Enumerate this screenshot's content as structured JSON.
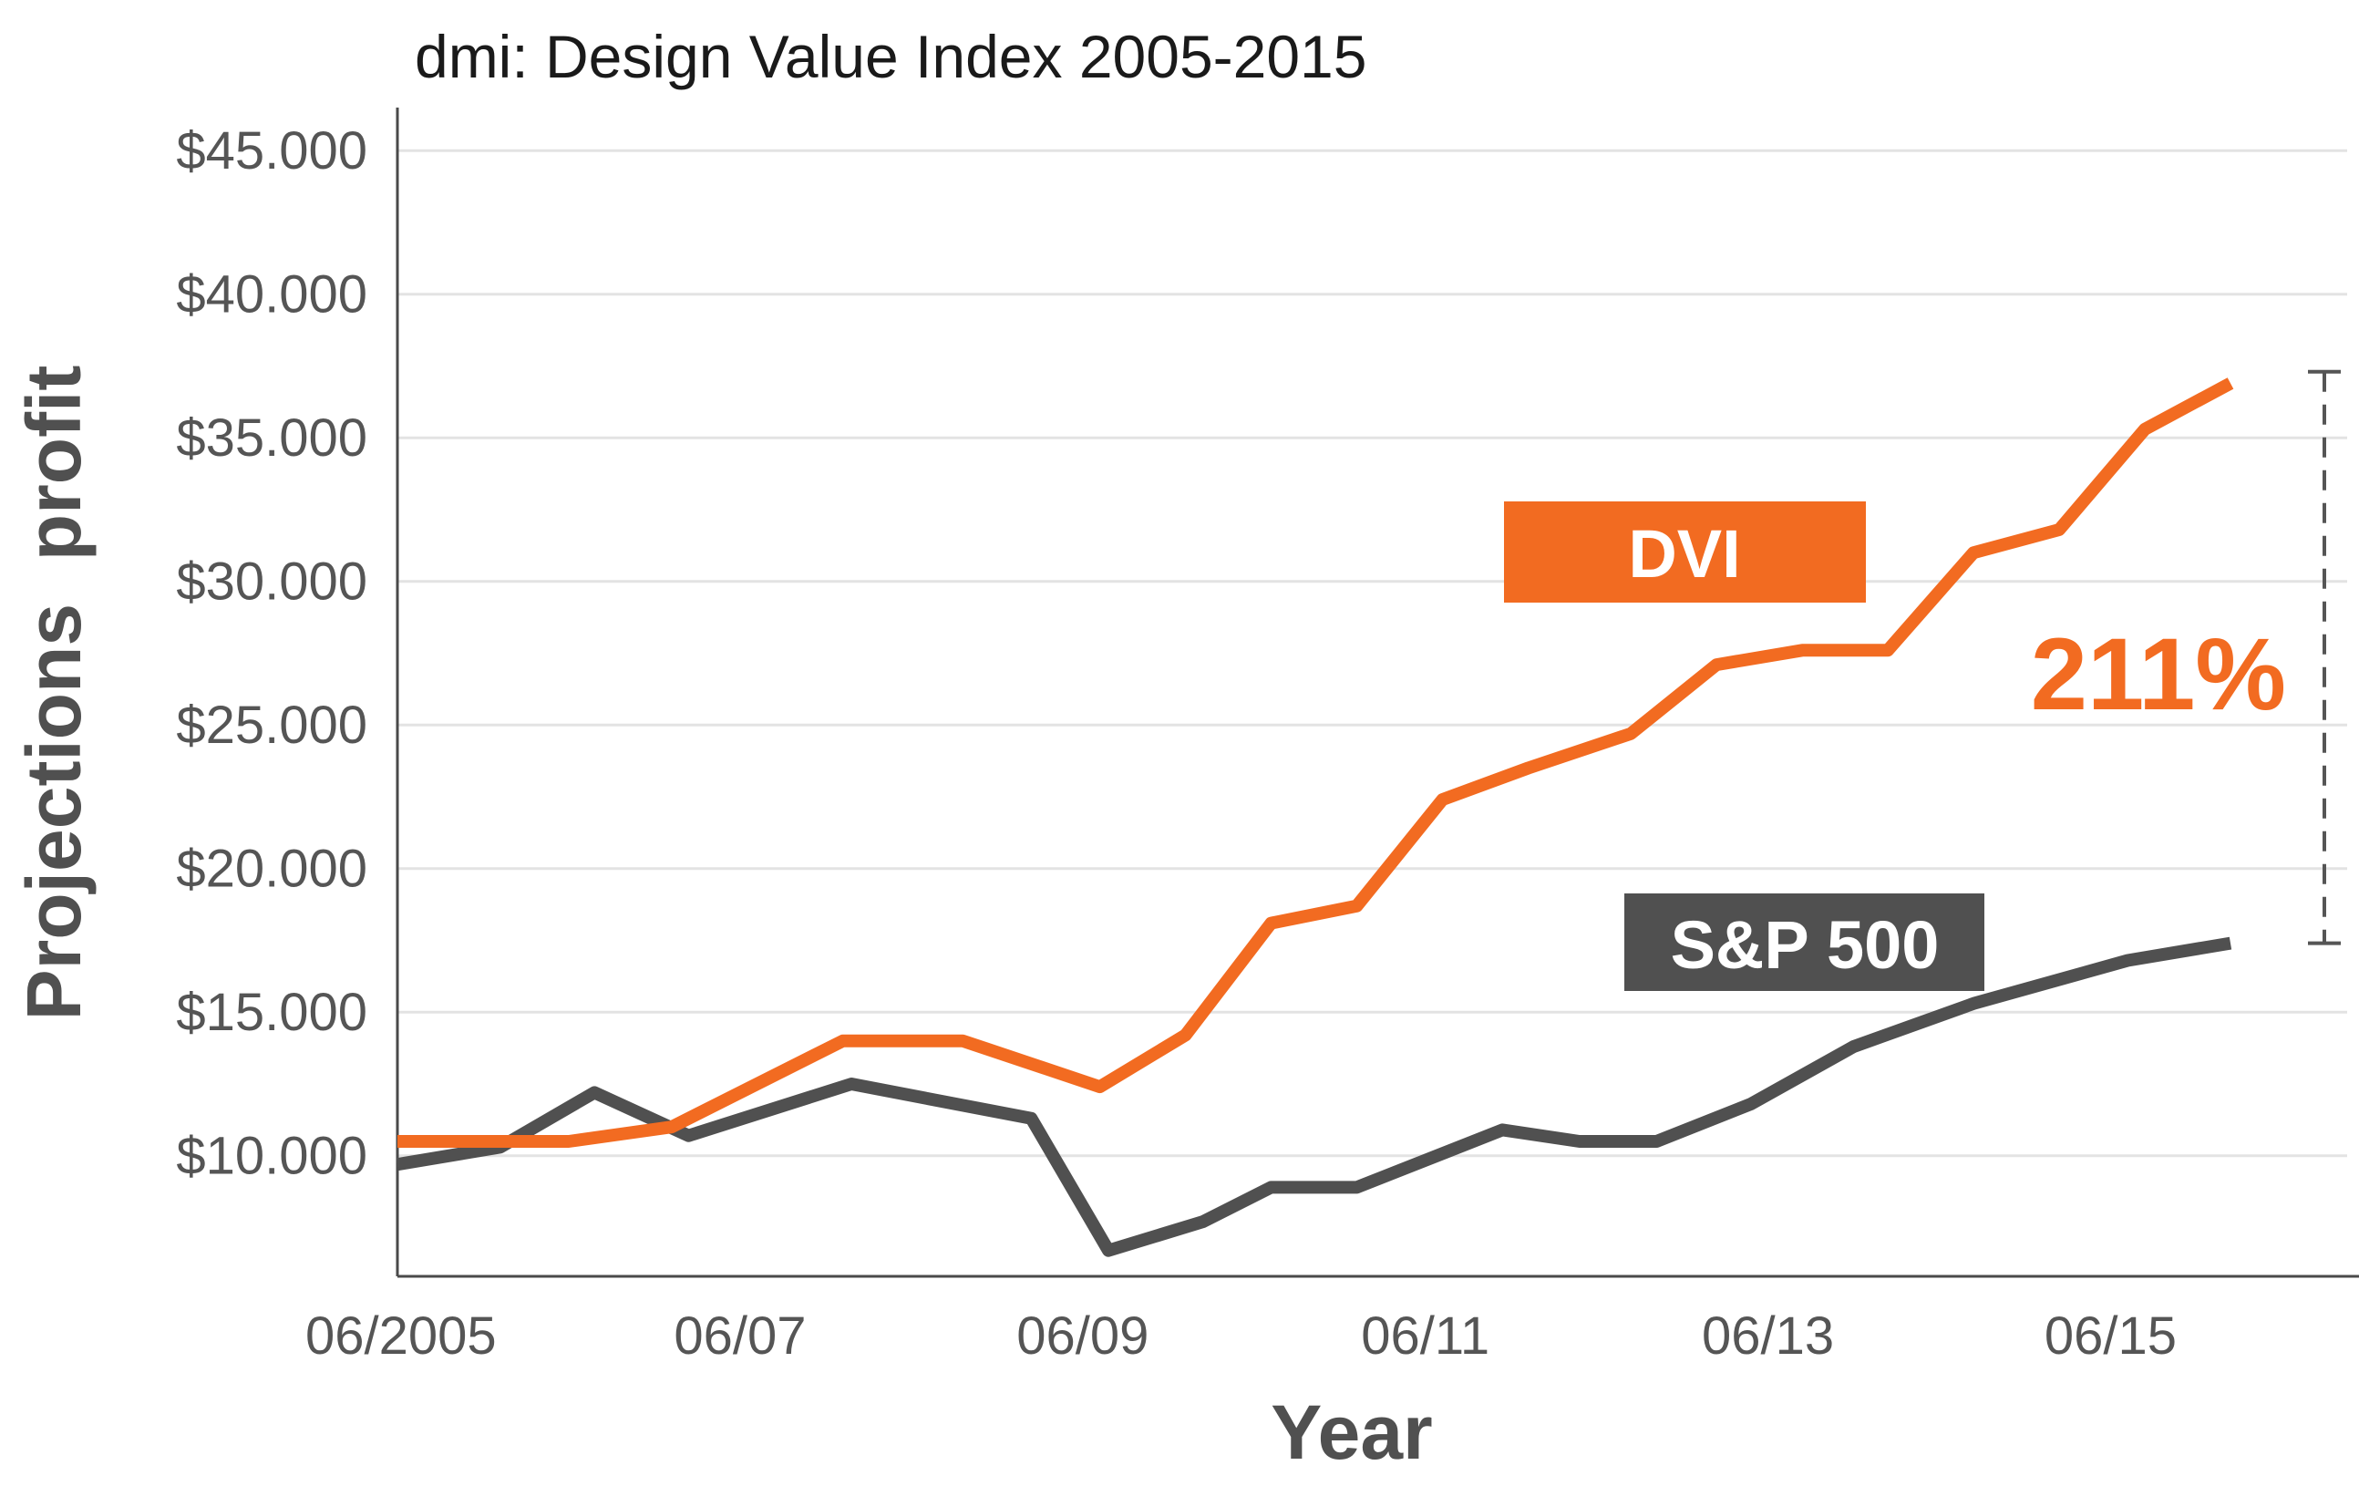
{
  "chart_data": {
    "type": "line",
    "title": "dmi: Design Value Index 2005-2015",
    "xlabel": "Year",
    "ylabel": "Projections  profit",
    "x_ticks": [
      {
        "x": 0,
        "label": "06/2005"
      },
      {
        "x": 2,
        "label": "06/07"
      },
      {
        "x": 4,
        "label": "06/09"
      },
      {
        "x": 6,
        "label": "06/11"
      },
      {
        "x": 8,
        "label": "06/13"
      },
      {
        "x": 10,
        "label": "06/15"
      }
    ],
    "xlim": [
      0,
      11.45
    ],
    "y_ticks": [
      {
        "y": 10000,
        "label": "$10.000"
      },
      {
        "y": 15000,
        "label": "$15.000"
      },
      {
        "y": 20000,
        "label": "$20.000"
      },
      {
        "y": 25000,
        "label": "$25.000"
      },
      {
        "y": 30000,
        "label": "$30.000"
      },
      {
        "y": 35000,
        "label": "$35.000"
      },
      {
        "y": 40000,
        "label": "$40.000"
      },
      {
        "y": 45000,
        "label": "$45.000"
      }
    ],
    "ylim": [
      5800,
      46500
    ],
    "grid": true,
    "series": [
      {
        "name": "DVI",
        "color": "#f26b21",
        "points": [
          [
            0,
            10500
          ],
          [
            1,
            10500
          ],
          [
            1.6,
            11000
          ],
          [
            2.6,
            14000
          ],
          [
            3.3,
            14000
          ],
          [
            4.1,
            12400
          ],
          [
            4.6,
            14200
          ],
          [
            5.1,
            18100
          ],
          [
            5.6,
            18700
          ],
          [
            6.1,
            22400
          ],
          [
            6.6,
            23500
          ],
          [
            7.2,
            24700
          ],
          [
            7.7,
            27100
          ],
          [
            8.2,
            27600
          ],
          [
            8.7,
            27600
          ],
          [
            9.2,
            31000
          ],
          [
            9.7,
            31800
          ],
          [
            10.2,
            35300
          ],
          [
            10.7,
            36900
          ]
        ]
      },
      {
        "name": "S&P 500",
        "color": "#505050",
        "points": [
          [
            0,
            9700
          ],
          [
            0.6,
            10300
          ],
          [
            1.15,
            12200
          ],
          [
            1.7,
            10700
          ],
          [
            2.65,
            12500
          ],
          [
            3.7,
            11300
          ],
          [
            4.15,
            6700
          ],
          [
            4.7,
            7700
          ],
          [
            5.1,
            8900
          ],
          [
            5.6,
            8900
          ],
          [
            6.45,
            10900
          ],
          [
            6.9,
            10500
          ],
          [
            7.35,
            10500
          ],
          [
            7.9,
            11800
          ],
          [
            8.5,
            13800
          ],
          [
            9.2,
            15300
          ],
          [
            10.1,
            16800
          ],
          [
            10.7,
            17400
          ]
        ]
      }
    ],
    "annotations": [
      {
        "text": "211%",
        "color": "#f26b21",
        "from": 17400,
        "to": 37300
      }
    ]
  }
}
